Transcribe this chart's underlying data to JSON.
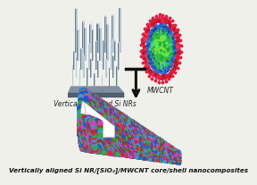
{
  "background_color": "#f0f0eb",
  "title_text": "Vertically aligned Si NR/[SiO₂]/MWCNT core/shell nanocomposites",
  "label_left": "Vertically aligned Si NRs",
  "label_right": "MWCNT",
  "title_fontsize": 5.2,
  "label_fontsize": 5.5,
  "arrow_color": "#111111",
  "rod_color_light": "#b8c8d4",
  "rod_color_dark": "#6a7a88",
  "rod_color_mid": "#8fa0b0",
  "base_color": "#7a8a98",
  "mwcnt_red": "#dd2244",
  "mwcnt_blue": "#2255bb",
  "mwcnt_green": "#33bb44",
  "mwcnt_green_bright": "#55dd44",
  "dot_colors": [
    "#dd2244",
    "#2255cc",
    "#33aa44",
    "#cc44bb",
    "#4499cc",
    "#884422",
    "#aa3388"
  ],
  "composite_dot_colors": [
    "#dd2244",
    "#2255cc",
    "#33aa44",
    "#cc44bb",
    "#4499cc",
    "#884422"
  ]
}
